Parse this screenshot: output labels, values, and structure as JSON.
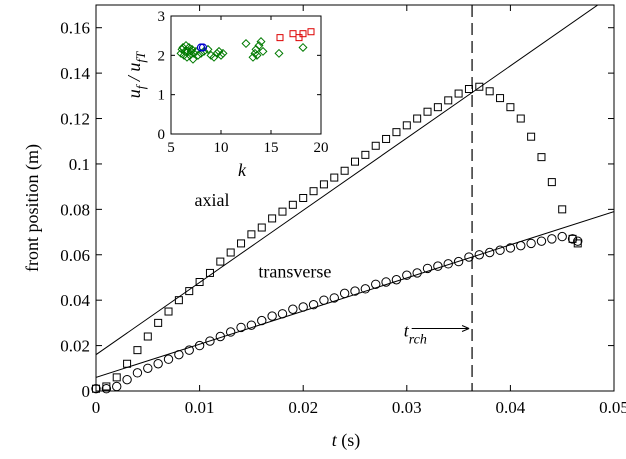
{
  "chart_data": [
    {
      "type": "scatter",
      "xlabel_main": "t",
      "xlabel_unit": " (s)",
      "ylabel": "front position (m)",
      "xlim": [
        0,
        0.05
      ],
      "ylim": [
        0,
        0.17
      ],
      "x_ticks": [
        0,
        0.01,
        0.02,
        0.03,
        0.04,
        0.05
      ],
      "x_tick_labels": [
        "0",
        "0.01",
        "0.02",
        "0.03",
        "0.04",
        "0.05"
      ],
      "y_ticks": [
        0,
        0.02,
        0.04,
        0.06,
        0.08,
        0.1,
        0.12,
        0.14,
        0.16
      ],
      "y_tick_labels": [
        "0",
        "0.02",
        "0.04",
        "0.06",
        "0.08",
        "0.1",
        "0.12",
        "0.14",
        "0.16"
      ],
      "grid": false,
      "series": [
        {
          "name": "axial",
          "marker": "square",
          "color": "#000000",
          "points": [
            [
              0,
              0.001
            ],
            [
              0.001,
              0.002
            ],
            [
              0.002,
              0.006
            ],
            [
              0.003,
              0.012
            ],
            [
              0.004,
              0.018
            ],
            [
              0.005,
              0.024
            ],
            [
              0.006,
              0.03
            ],
            [
              0.007,
              0.035
            ],
            [
              0.008,
              0.04
            ],
            [
              0.009,
              0.044
            ],
            [
              0.01,
              0.048
            ],
            [
              0.011,
              0.052
            ],
            [
              0.012,
              0.057
            ],
            [
              0.013,
              0.061
            ],
            [
              0.014,
              0.065
            ],
            [
              0.015,
              0.069
            ],
            [
              0.016,
              0.072
            ],
            [
              0.017,
              0.076
            ],
            [
              0.018,
              0.079
            ],
            [
              0.019,
              0.082
            ],
            [
              0.02,
              0.085
            ],
            [
              0.021,
              0.088
            ],
            [
              0.022,
              0.091
            ],
            [
              0.023,
              0.094
            ],
            [
              0.024,
              0.097
            ],
            [
              0.025,
              0.101
            ],
            [
              0.026,
              0.104
            ],
            [
              0.027,
              0.108
            ],
            [
              0.028,
              0.111
            ],
            [
              0.029,
              0.114
            ],
            [
              0.03,
              0.117
            ],
            [
              0.031,
              0.12
            ],
            [
              0.032,
              0.123
            ],
            [
              0.033,
              0.125
            ],
            [
              0.034,
              0.128
            ],
            [
              0.035,
              0.131
            ],
            [
              0.036,
              0.133
            ],
            [
              0.037,
              0.134
            ],
            [
              0.038,
              0.132
            ],
            [
              0.039,
              0.129
            ],
            [
              0.04,
              0.125
            ],
            [
              0.041,
              0.12
            ],
            [
              0.042,
              0.112
            ],
            [
              0.043,
              0.103
            ],
            [
              0.044,
              0.092
            ],
            [
              0.045,
              0.08
            ],
            [
              0.046,
              0.067
            ],
            [
              0.0465,
              0.065
            ]
          ]
        },
        {
          "name": "transverse",
          "marker": "circle",
          "color": "#000000",
          "points": [
            [
              0,
              0.001
            ],
            [
              0.001,
              0.001
            ],
            [
              0.002,
              0.002
            ],
            [
              0.003,
              0.005
            ],
            [
              0.004,
              0.008
            ],
            [
              0.005,
              0.01
            ],
            [
              0.006,
              0.012
            ],
            [
              0.007,
              0.014
            ],
            [
              0.008,
              0.016
            ],
            [
              0.009,
              0.018
            ],
            [
              0.01,
              0.02
            ],
            [
              0.011,
              0.022
            ],
            [
              0.012,
              0.024
            ],
            [
              0.013,
              0.026
            ],
            [
              0.014,
              0.028
            ],
            [
              0.015,
              0.029
            ],
            [
              0.016,
              0.031
            ],
            [
              0.017,
              0.033
            ],
            [
              0.018,
              0.034
            ],
            [
              0.019,
              0.036
            ],
            [
              0.02,
              0.037
            ],
            [
              0.021,
              0.038
            ],
            [
              0.022,
              0.04
            ],
            [
              0.023,
              0.041
            ],
            [
              0.024,
              0.043
            ],
            [
              0.025,
              0.044
            ],
            [
              0.026,
              0.045
            ],
            [
              0.027,
              0.047
            ],
            [
              0.028,
              0.048
            ],
            [
              0.029,
              0.049
            ],
            [
              0.03,
              0.051
            ],
            [
              0.031,
              0.052
            ],
            [
              0.032,
              0.054
            ],
            [
              0.033,
              0.055
            ],
            [
              0.034,
              0.056
            ],
            [
              0.035,
              0.057
            ],
            [
              0.036,
              0.059
            ],
            [
              0.037,
              0.06
            ],
            [
              0.038,
              0.061
            ],
            [
              0.039,
              0.062
            ],
            [
              0.04,
              0.063
            ],
            [
              0.041,
              0.064
            ],
            [
              0.042,
              0.065
            ],
            [
              0.043,
              0.066
            ],
            [
              0.044,
              0.067
            ],
            [
              0.045,
              0.068
            ],
            [
              0.046,
              0.067
            ],
            [
              0.0465,
              0.066
            ]
          ]
        }
      ],
      "fit_lines": [
        {
          "name": "axial-fit",
          "x": [
            0,
            0.05
          ],
          "y": [
            0.016,
            0.175
          ]
        },
        {
          "name": "transverse-fit",
          "x": [
            0,
            0.05
          ],
          "y": [
            0.006,
            0.079
          ]
        }
      ],
      "vertical_line": {
        "x": 0.0363,
        "style": "dashed"
      },
      "annotations": [
        {
          "name": "axial-label",
          "text": "axial",
          "x": 0.0112,
          "y": 0.0815
        },
        {
          "name": "transverse-label",
          "text": "transverse",
          "x": 0.0192,
          "y": 0.05
        },
        {
          "name": "t-rch-label",
          "text_main": "t",
          "text_sub": "rch",
          "arrow": "right",
          "x": 0.0297,
          "y": 0.024
        }
      ]
    },
    {
      "type": "scatter",
      "xlabel": "k",
      "ylabel_parts": [
        "u",
        "f",
        " / u",
        "fT"
      ],
      "xlim": [
        5,
        20
      ],
      "ylim": [
        0,
        3
      ],
      "x_ticks": [
        5,
        10,
        15,
        20
      ],
      "x_tick_labels": [
        "5",
        "10",
        "15",
        "20"
      ],
      "y_ticks": [
        0,
        1,
        2,
        3
      ],
      "y_tick_labels": [
        "0",
        "1",
        "2",
        "3"
      ],
      "series": [
        {
          "marker": "diamond",
          "color": "#007a00",
          "points": [
            [
              6.0,
              2.05
            ],
            [
              6.1,
              2.15
            ],
            [
              6.2,
              2.2
            ],
            [
              6.3,
              2.0
            ],
            [
              6.4,
              2.1
            ],
            [
              6.5,
              2.25
            ],
            [
              6.6,
              1.95
            ],
            [
              6.7,
              2.1
            ],
            [
              6.8,
              2.2
            ],
            [
              6.9,
              2.0
            ],
            [
              7.0,
              2.1
            ],
            [
              7.1,
              2.15
            ],
            [
              7.2,
              1.9
            ],
            [
              7.3,
              2.05
            ],
            [
              7.5,
              2.1
            ],
            [
              7.7,
              2.0
            ],
            [
              8.0,
              2.05
            ],
            [
              8.3,
              2.1
            ],
            [
              8.7,
              2.15
            ],
            [
              9.0,
              2.0
            ],
            [
              9.3,
              1.95
            ],
            [
              9.6,
              2.05
            ],
            [
              9.8,
              2.1
            ],
            [
              10.0,
              2.0
            ],
            [
              10.2,
              2.05
            ],
            [
              12.5,
              2.3
            ],
            [
              13.2,
              1.95
            ],
            [
              13.4,
              2.05
            ],
            [
              13.5,
              2.15
            ],
            [
              13.6,
              2.0
            ],
            [
              13.8,
              2.25
            ],
            [
              14.0,
              2.35
            ],
            [
              14.2,
              2.1
            ],
            [
              15.8,
              2.05
            ],
            [
              18.2,
              2.2
            ]
          ]
        },
        {
          "marker": "circle",
          "color": "#0000cc",
          "points": [
            [
              8.0,
              2.2
            ],
            [
              8.2,
              2.2
            ]
          ]
        },
        {
          "marker": "square",
          "color": "#dd0000",
          "points": [
            [
              15.9,
              2.45
            ],
            [
              17.2,
              2.55
            ],
            [
              17.8,
              2.45
            ],
            [
              18.2,
              2.55
            ],
            [
              19.0,
              2.6
            ]
          ]
        }
      ]
    }
  ]
}
